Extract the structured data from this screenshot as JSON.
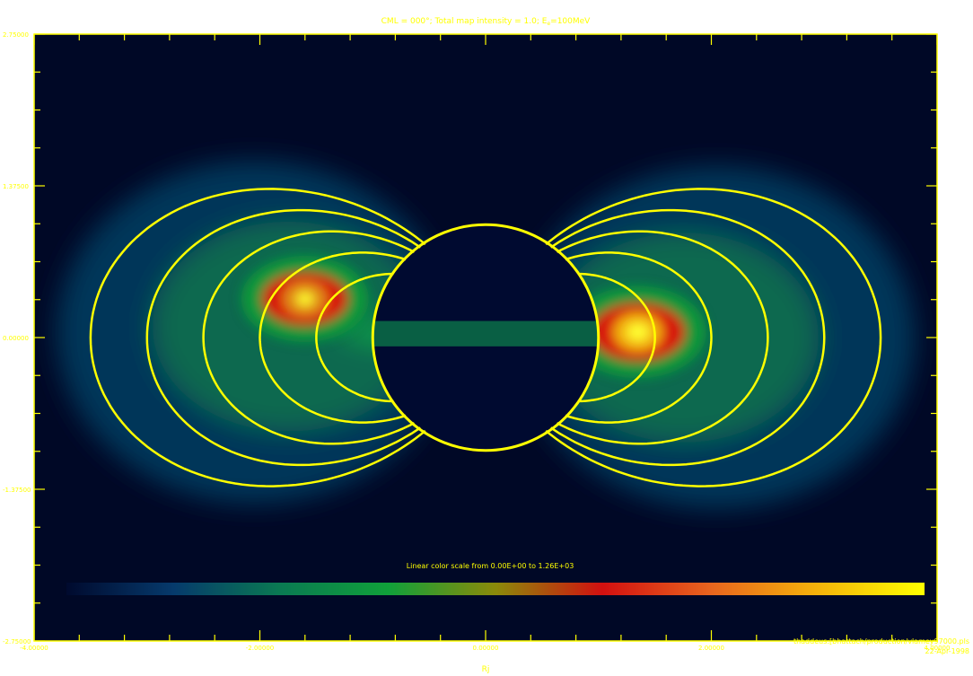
{
  "chart_data": {
    "type": "heatmap",
    "title_prefix": "CML = 000°; Total map intensity = 1.0;  E",
    "title_subscript": "e",
    "title_suffix": "=100MeV",
    "xlabel": "Rj",
    "xlim": [
      -4.0,
      4.0
    ],
    "ylim": [
      -2.75,
      2.75
    ],
    "x_ticks": [
      {
        "value": -4.0,
        "label": "-4.00000"
      },
      {
        "value": -2.0,
        "label": "-2.00000"
      },
      {
        "value": 0.0,
        "label": "0.00000"
      },
      {
        "value": 2.0,
        "label": "2.00000"
      },
      {
        "value": 4.0,
        "label": "4.00000"
      }
    ],
    "y_ticks": [
      {
        "value": -2.75,
        "label": "-2.75000"
      },
      {
        "value": -1.375,
        "label": "-1.37500"
      },
      {
        "value": 0.0,
        "label": "0.00000"
      },
      {
        "value": 1.375,
        "label": "1.37500"
      },
      {
        "value": 2.75,
        "label": "2.75000"
      }
    ],
    "x_minor_step": 0.4,
    "y_minor_step": 0.34375,
    "colorbar_label": "Linear color scale from 0.00E+00 to 1.26E+03",
    "color_min": 0.0,
    "color_max": 1260.0,
    "colorscale": [
      "#000a2e",
      "#063a6c",
      "#0a7a52",
      "#10a03a",
      "#8b8a0a",
      "#d21010",
      "#e8641e",
      "#f5b20a",
      "#ffff00"
    ],
    "planet_radius": 1.0,
    "field_line_L_shells": [
      1.5,
      2.0,
      2.5,
      3.0,
      3.5
    ],
    "hotspots": [
      {
        "x": -1.6,
        "y": 0.35,
        "peak": 950
      },
      {
        "x": 1.35,
        "y": 0.05,
        "peak": 1260
      }
    ],
    "credit_path": "thaddeus:[bhattach/production/vlamey97000.pls",
    "credit_date": "22-Apr-1998",
    "axis_color": "#ffff00"
  }
}
